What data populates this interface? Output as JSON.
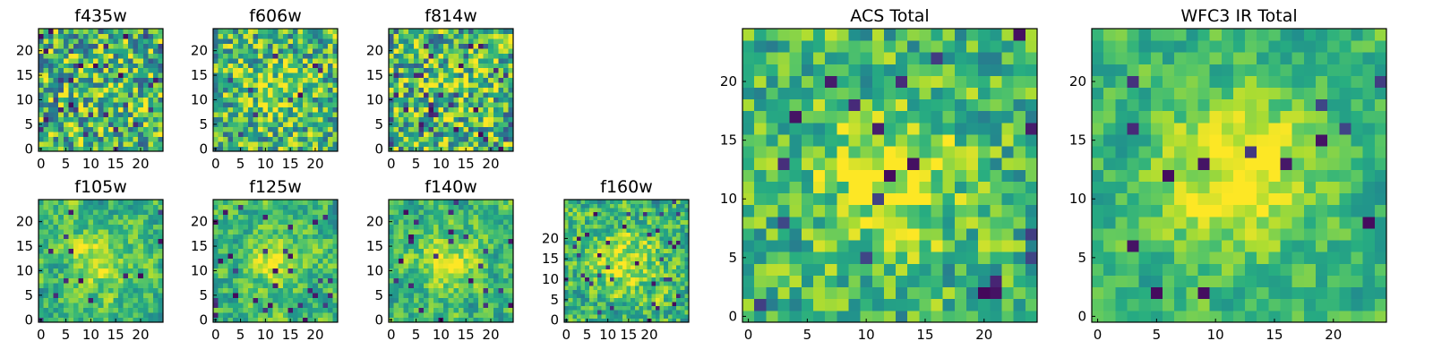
{
  "figure": {
    "description_colormap": "viridis",
    "colors": {
      "low": "#440154",
      "mid": "#21918c",
      "high": "#fde725",
      "frame": "#000000",
      "background": "#ffffff"
    }
  },
  "chart_data": [
    {
      "type": "heatmap",
      "title": "f435w",
      "grid_size": 25,
      "xlim": [
        0,
        24
      ],
      "ylim": [
        0,
        24
      ],
      "xticks": [
        "0",
        "5",
        "10",
        "15",
        "20"
      ],
      "yticks": [
        "0",
        "5",
        "10",
        "15",
        "20"
      ],
      "colormap": "viridis",
      "seed": 11,
      "center_strength": 0.05,
      "noise": 0.38,
      "smooth": 0.0,
      "dark_fraction": 0.05
    },
    {
      "type": "heatmap",
      "title": "f606w",
      "grid_size": 25,
      "xlim": [
        0,
        24
      ],
      "ylim": [
        0,
        24
      ],
      "xticks": [
        "0",
        "5",
        "10",
        "15",
        "20"
      ],
      "yticks": [
        "0",
        "5",
        "10",
        "15",
        "20"
      ],
      "colormap": "viridis",
      "seed": 23,
      "center_strength": 0.2,
      "noise": 0.34,
      "smooth": 0.0,
      "dark_fraction": 0.02
    },
    {
      "type": "heatmap",
      "title": "f814w",
      "grid_size": 25,
      "xlim": [
        0,
        24
      ],
      "ylim": [
        0,
        24
      ],
      "xticks": [
        "0",
        "5",
        "10",
        "15",
        "20"
      ],
      "yticks": [
        "0",
        "5",
        "10",
        "15",
        "20"
      ],
      "colormap": "viridis",
      "seed": 37,
      "center_strength": 0.1,
      "noise": 0.38,
      "smooth": 0.0,
      "dark_fraction": 0.05
    },
    {
      "type": "heatmap",
      "title": "f105w",
      "grid_size": 25,
      "xlim": [
        0,
        24
      ],
      "ylim": [
        0,
        24
      ],
      "xticks": [
        "0",
        "5",
        "10",
        "15",
        "20"
      ],
      "yticks": [
        "0",
        "5",
        "10",
        "15",
        "20"
      ],
      "colormap": "viridis",
      "seed": 41,
      "center_strength": 0.25,
      "noise": 0.32,
      "smooth": 0.5,
      "dark_fraction": 0.03
    },
    {
      "type": "heatmap",
      "title": "f125w",
      "grid_size": 25,
      "xlim": [
        0,
        24
      ],
      "ylim": [
        0,
        24
      ],
      "xticks": [
        "0",
        "5",
        "10",
        "15",
        "20"
      ],
      "yticks": [
        "0",
        "5",
        "10",
        "15",
        "20"
      ],
      "colormap": "viridis",
      "seed": 53,
      "center_strength": 0.25,
      "noise": 0.32,
      "smooth": 0.5,
      "dark_fraction": 0.04
    },
    {
      "type": "heatmap",
      "title": "f140w",
      "grid_size": 25,
      "xlim": [
        0,
        24
      ],
      "ylim": [
        0,
        24
      ],
      "xticks": [
        "0",
        "5",
        "10",
        "15",
        "20"
      ],
      "yticks": [
        "0",
        "5",
        "10",
        "15",
        "20"
      ],
      "colormap": "viridis",
      "seed": 67,
      "center_strength": 0.25,
      "noise": 0.32,
      "smooth": 0.5,
      "dark_fraction": 0.03
    },
    {
      "type": "heatmap",
      "title": "f160w",
      "grid_size": 30,
      "xlim": [
        0,
        29
      ],
      "ylim": [
        0,
        29
      ],
      "xticks": [
        "0",
        "5",
        "10",
        "15",
        "20"
      ],
      "yticks": [
        "0",
        "5",
        "10",
        "15",
        "20"
      ],
      "colormap": "viridis",
      "seed": 79,
      "center_strength": 0.3,
      "noise": 0.34,
      "smooth": 0.4,
      "dark_fraction": 0.04
    },
    {
      "type": "heatmap",
      "title": "ACS Total",
      "grid_size": 25,
      "xlim": [
        0,
        24
      ],
      "ylim": [
        0,
        24
      ],
      "xticks": [
        "0",
        "5",
        "10",
        "15",
        "20"
      ],
      "yticks": [
        "0",
        "5",
        "10",
        "15",
        "20"
      ],
      "colormap": "viridis",
      "seed": 97,
      "center_strength": 0.3,
      "noise": 0.3,
      "smooth": 0.2,
      "dark_fraction": 0.03
    },
    {
      "type": "heatmap",
      "title": "WFC3 IR Total",
      "grid_size": 25,
      "xlim": [
        0,
        24
      ],
      "ylim": [
        0,
        24
      ],
      "xticks": [
        "0",
        "5",
        "10",
        "15",
        "20"
      ],
      "yticks": [
        "0",
        "5",
        "10",
        "15",
        "20"
      ],
      "colormap": "viridis",
      "seed": 113,
      "center_strength": 0.4,
      "noise": 0.26,
      "smooth": 0.5,
      "dark_fraction": 0.03
    }
  ]
}
